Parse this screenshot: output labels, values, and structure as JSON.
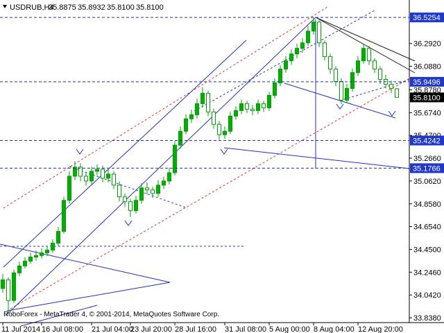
{
  "chart_data": {
    "type": "candlestick",
    "symbol": "USDRUB,H4",
    "header_values": [
      "35.8875",
      "35.8932",
      "35.8100",
      "35.8100"
    ],
    "footer": "RoboForex - MetaTrader 4, © 2001-2014, MetaQuotes Software Corp.",
    "up_color": "#00b000",
    "down_color": "#ffffff",
    "wick_color": "#00a000",
    "open": [
      34.1,
      34.178,
      33.993,
      34.24,
      34.302,
      34.345,
      34.382,
      34.395,
      34.419,
      34.444,
      34.506,
      34.611,
      34.889,
      35.105,
      35.186,
      35.105,
      35.062,
      35.149,
      35.167,
      35.087,
      35.124,
      35.025,
      34.92,
      34.877,
      34.796,
      34.889,
      35.0,
      34.982,
      34.951,
      35.025,
      35.062,
      35.136,
      35.383,
      35.507,
      35.618,
      35.655,
      35.754,
      35.847,
      35.68,
      35.569,
      35.476,
      35.507,
      35.643,
      35.692,
      35.754,
      35.705,
      35.692,
      35.754,
      35.717,
      35.828,
      35.94,
      36.063,
      36.137,
      36.199,
      36.249,
      36.298,
      36.403,
      36.484,
      36.298,
      36.175,
      36.063,
      35.952,
      35.785,
      35.89,
      36.032,
      36.137,
      36.249,
      36.137,
      36.063,
      35.971,
      35.927,
      35.8875
    ],
    "high": [
      34.23,
      34.2,
      34.27,
      34.34,
      34.38,
      34.42,
      34.44,
      34.46,
      34.48,
      34.54,
      34.65,
      34.92,
      35.15,
      35.24,
      35.22,
      35.14,
      35.19,
      35.21,
      35.2,
      35.17,
      35.15,
      35.06,
      34.95,
      34.9,
      34.93,
      35.04,
      35.05,
      35.01,
      35.07,
      35.1,
      35.18,
      35.42,
      35.55,
      35.66,
      35.7,
      35.8,
      35.9,
      35.87,
      35.71,
      35.6,
      35.55,
      35.68,
      35.73,
      35.79,
      35.78,
      35.74,
      35.79,
      35.78,
      35.86,
      35.98,
      36.1,
      36.18,
      36.24,
      36.29,
      36.34,
      36.45,
      36.525,
      36.5,
      36.32,
      36.2,
      36.09,
      35.98,
      35.93,
      36.07,
      36.18,
      36.29,
      36.27,
      36.16,
      36.09,
      36.01,
      35.96,
      35.8932
    ],
    "low": [
      34.06,
      33.88,
      33.97,
      34.21,
      34.28,
      34.32,
      34.35,
      34.37,
      34.39,
      34.42,
      34.48,
      34.59,
      34.86,
      35.07,
      35.06,
      35.02,
      35.03,
      35.11,
      35.05,
      35.05,
      34.99,
      34.88,
      34.83,
      34.74,
      34.77,
      34.86,
      34.94,
      34.91,
      34.92,
      34.99,
      35.03,
      35.11,
      35.35,
      35.48,
      35.58,
      35.62,
      35.72,
      35.64,
      35.53,
      35.43,
      35.44,
      35.48,
      35.61,
      35.66,
      35.67,
      35.65,
      35.66,
      35.68,
      35.69,
      35.8,
      35.91,
      36.03,
      36.1,
      36.16,
      36.21,
      36.27,
      36.37,
      36.26,
      36.14,
      36.02,
      35.91,
      35.75,
      35.76,
      35.86,
      36.0,
      36.11,
      36.1,
      36.03,
      35.93,
      35.89,
      35.85,
      35.81
    ],
    "close": [
      34.178,
      33.993,
      34.24,
      34.302,
      34.345,
      34.382,
      34.395,
      34.419,
      34.444,
      34.506,
      34.611,
      34.889,
      35.105,
      35.186,
      35.105,
      35.062,
      35.149,
      35.167,
      35.087,
      35.124,
      35.025,
      34.92,
      34.877,
      34.796,
      34.889,
      35.0,
      34.982,
      34.951,
      35.025,
      35.062,
      35.136,
      35.383,
      35.507,
      35.618,
      35.655,
      35.754,
      35.847,
      35.68,
      35.569,
      35.476,
      35.507,
      35.643,
      35.692,
      35.754,
      35.705,
      35.692,
      35.754,
      35.717,
      35.828,
      35.94,
      36.063,
      36.137,
      36.199,
      36.249,
      36.298,
      36.403,
      36.484,
      36.298,
      36.175,
      36.063,
      35.952,
      35.785,
      35.89,
      36.032,
      36.137,
      36.249,
      36.137,
      36.063,
      35.971,
      35.927,
      35.89,
      35.81
    ],
    "ylim": [
      33.795,
      36.669
    ],
    "yticks": [
      {
        "value": 36.292,
        "label": "36.2920"
      },
      {
        "value": 36.088,
        "label": "36.0880"
      },
      {
        "value": 35.878,
        "label": "35.8780"
      },
      {
        "value": 35.674,
        "label": "35.6740"
      },
      {
        "value": 35.47,
        "label": "35.4700"
      },
      {
        "value": 35.266,
        "label": "35.2660"
      },
      {
        "value": 35.062,
        "label": "35.0620"
      },
      {
        "value": 34.858,
        "label": "34.8580"
      },
      {
        "value": 34.654,
        "label": "34.6540"
      },
      {
        "value": 34.45,
        "label": "34.4500"
      },
      {
        "value": 34.246,
        "label": "34.2460"
      },
      {
        "value": 34.042,
        "label": "34.0420"
      },
      {
        "value": 33.838,
        "label": "33.8380"
      }
    ],
    "levels": [
      36.5254,
      35.9496,
      35.4242,
      35.1766
    ],
    "current_price": {
      "value": 35.81,
      "label": "35.8100"
    },
    "xticks": [
      {
        "value": 0,
        "label": "11 Jul 2014"
      },
      {
        "value": 7,
        "label": "16 Jul 08:00"
      },
      {
        "value": 16,
        "label": "21 Jul 04:00"
      },
      {
        "value": 23,
        "label": "23 Jul 20:00"
      },
      {
        "value": 31,
        "label": "28 Jul 16:00"
      },
      {
        "value": 40,
        "label": "31 Jul 08:00"
      },
      {
        "value": 48,
        "label": "5 Aug 00:00"
      },
      {
        "value": 56,
        "label": "8 Aug 04:00"
      },
      {
        "value": 64,
        "label": "12 Aug 20:00"
      }
    ]
  }
}
